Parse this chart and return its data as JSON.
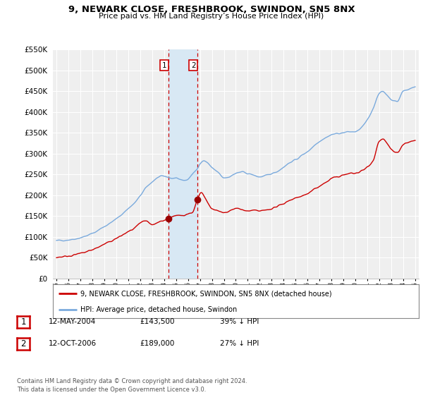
{
  "title": "9, NEWARK CLOSE, FRESHBROOK, SWINDON, SN5 8NX",
  "subtitle": "Price paid vs. HM Land Registry’s House Price Index (HPI)",
  "red_line_label": "9, NEWARK CLOSE, FRESHBROOK, SWINDON, SN5 8NX (detached house)",
  "blue_line_label": "HPI: Average price, detached house, Swindon",
  "legend_items": [
    {
      "label": "1",
      "date": "12-MAY-2004",
      "price": "£143,500",
      "hpi": "39% ↓ HPI"
    },
    {
      "label": "2",
      "date": "12-OCT-2006",
      "price": "£189,000",
      "hpi": "27% ↓ HPI"
    }
  ],
  "footer": "Contains HM Land Registry data © Crown copyright and database right 2024.\nThis data is licensed under the Open Government Licence v3.0.",
  "sale1_year": 2004.37,
  "sale1_price": 143500,
  "sale2_year": 2006.79,
  "sale2_price": 189000,
  "ylim": [
    0,
    550000
  ],
  "xlim_start": 1994.7,
  "xlim_end": 2025.3,
  "background_color": "#ffffff",
  "plot_bg_color": "#efefef",
  "grid_color": "#ffffff",
  "red_color": "#cc0000",
  "blue_color": "#7aaadd",
  "shade_color": "#d8e8f4",
  "marker_color": "#990000",
  "vline_color": "#cc0000"
}
